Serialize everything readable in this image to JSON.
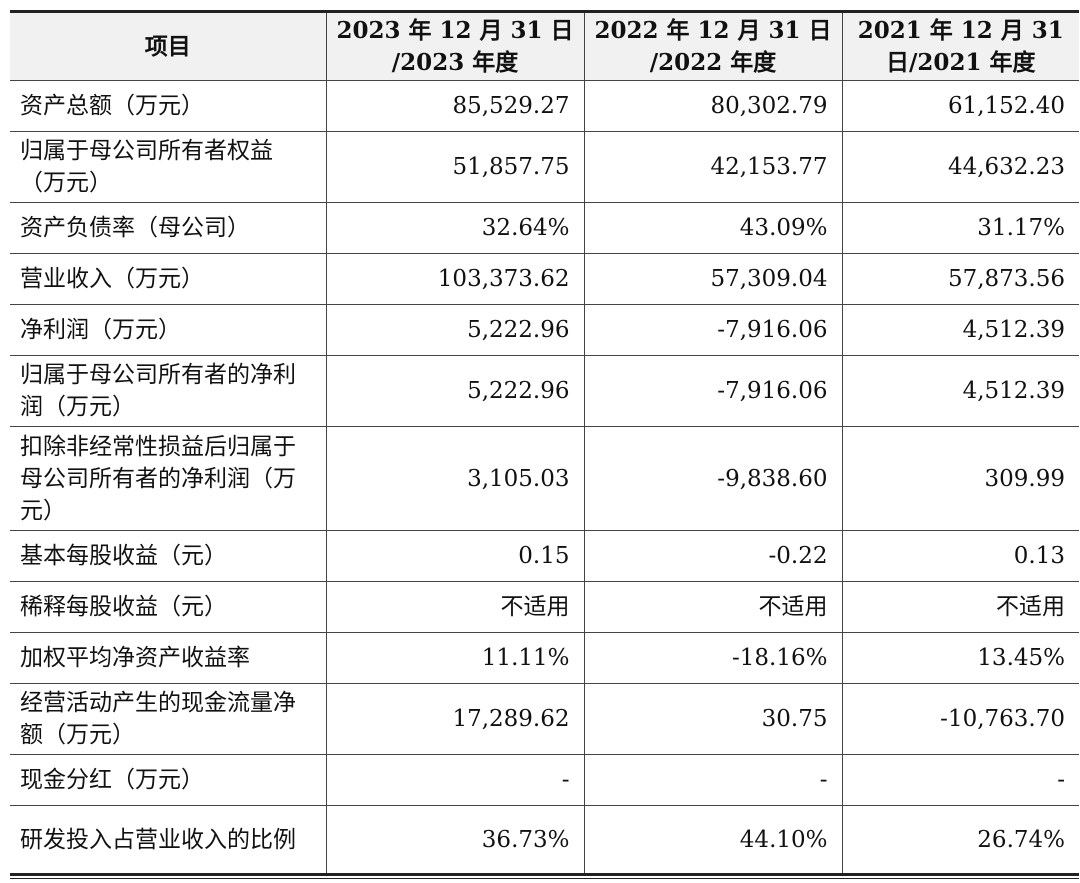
{
  "table": {
    "headers": [
      "项目",
      "2023 年 12 月 31 日 /2023 年度",
      "2022 年 12 月 31 日 /2022 年度",
      "2021 年 12 月 31 日/2021 年度"
    ],
    "rows": [
      {
        "label": "资产总额（万元）",
        "values": [
          "85,529.27",
          "80,302.79",
          "61,152.40"
        ]
      },
      {
        "label": "归属于母公司所有者权益（万元）",
        "values": [
          "51,857.75",
          "42,153.77",
          "44,632.23"
        ]
      },
      {
        "label": "资产负债率（母公司）",
        "values": [
          "32.64%",
          "43.09%",
          "31.17%"
        ]
      },
      {
        "label": "营业收入（万元）",
        "values": [
          "103,373.62",
          "57,309.04",
          "57,873.56"
        ]
      },
      {
        "label": "净利润（万元）",
        "values": [
          "5,222.96",
          "-7,916.06",
          "4,512.39"
        ]
      },
      {
        "label": "归属于母公司所有者的净利润（万元）",
        "values": [
          "5,222.96",
          "-7,916.06",
          "4,512.39"
        ]
      },
      {
        "label": "扣除非经常性损益后归属于母公司所有者的净利润（万元）",
        "values": [
          "3,105.03",
          "-9,838.60",
          "309.99"
        ]
      },
      {
        "label": "基本每股收益（元）",
        "values": [
          "0.15",
          "-0.22",
          "0.13"
        ]
      },
      {
        "label": "稀释每股收益（元）",
        "values": [
          "不适用",
          "不适用",
          "不适用"
        ]
      },
      {
        "label": "加权平均净资产收益率",
        "values": [
          "11.11%",
          "-18.16%",
          "13.45%"
        ]
      },
      {
        "label": "经营活动产生的现金流量净额（万元）",
        "values": [
          "17,289.62",
          "30.75",
          "-10,763.70"
        ]
      },
      {
        "label": "现金分红（万元）",
        "values": [
          "-",
          "-",
          "-"
        ]
      },
      {
        "label": "研发投入占营业收入的比例",
        "values": [
          "36.73%",
          "44.10%",
          "26.74%"
        ]
      }
    ]
  }
}
